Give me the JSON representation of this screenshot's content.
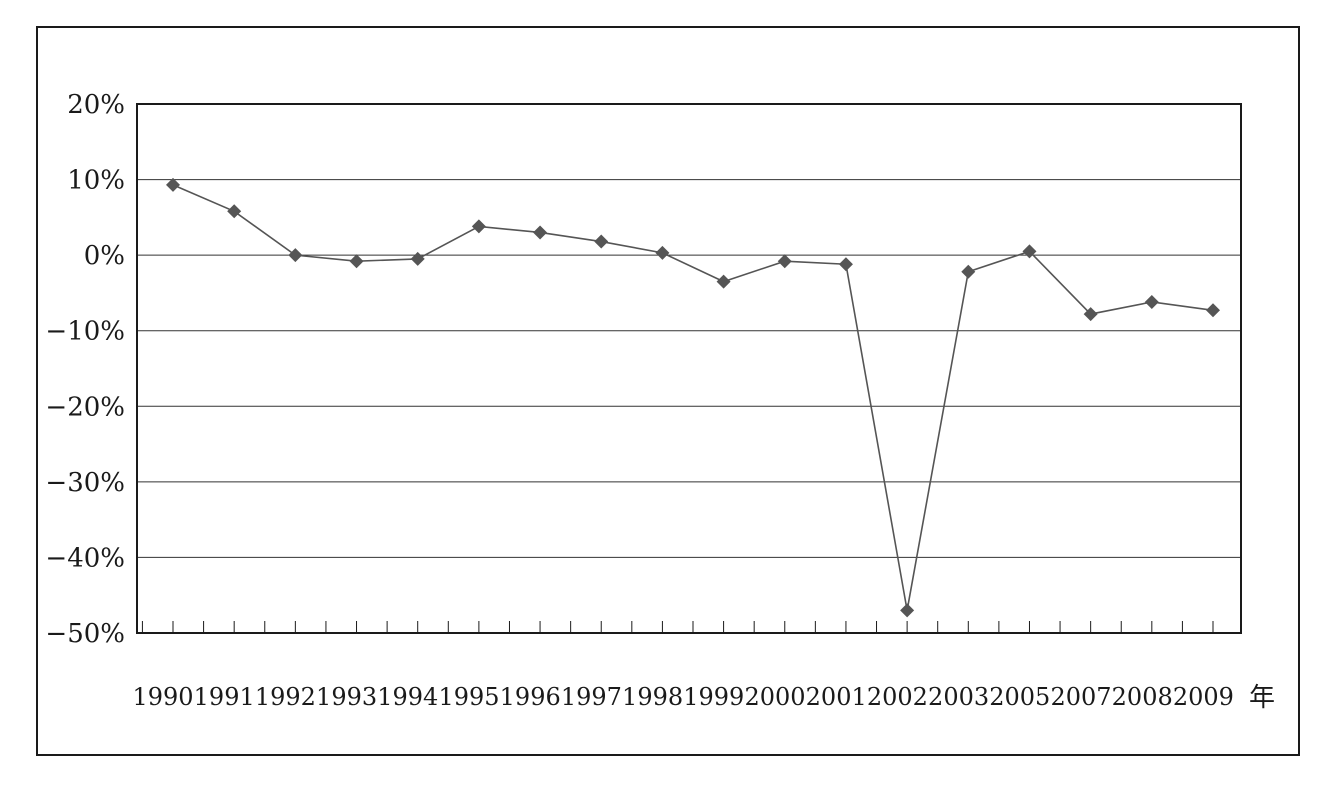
{
  "chart_data": {
    "type": "line",
    "title": "",
    "xlabel": "年",
    "ylabel": "",
    "categories": [
      "1990",
      "1991",
      "1992",
      "1993",
      "1994",
      "1995",
      "1996",
      "1997",
      "1998",
      "1999",
      "2000",
      "2001",
      "2002",
      "2003",
      "2005",
      "2007",
      "2008",
      "2009"
    ],
    "series": [
      {
        "values": [
          9.3,
          5.8,
          0.0,
          -0.8,
          -0.5,
          3.8,
          3.0,
          1.8,
          0.3,
          -3.5,
          -0.8,
          -1.2,
          -47.0,
          -2.2,
          0.5,
          -7.8,
          -6.2,
          -7.3
        ],
        "color": "#555555",
        "marker": "diamond"
      }
    ],
    "yticks": [
      20,
      10,
      0,
      -10,
      -20,
      -30,
      -40,
      -50
    ],
    "ytick_labels": [
      "20%",
      "10%",
      "0%",
      "−10%",
      "−20%",
      "−30%",
      "−40%",
      "−50%"
    ],
    "ylim": [
      -50,
      20
    ],
    "grid": true
  }
}
